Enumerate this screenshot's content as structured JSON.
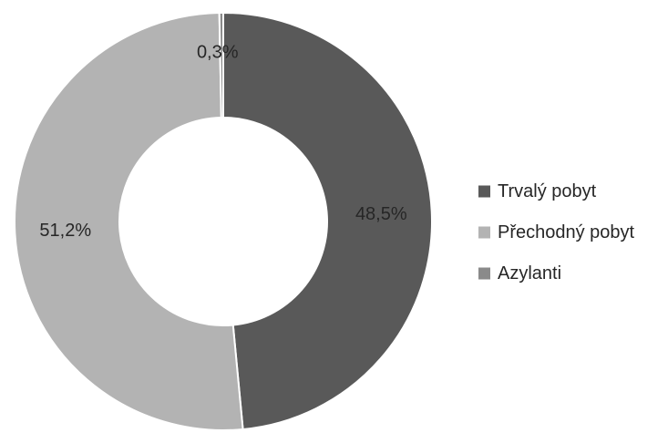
{
  "chart_data": {
    "type": "pie",
    "subtype": "doughnut",
    "title": "",
    "legend_position": "right",
    "slices": [
      {
        "label": "Trvalý pobyt",
        "value": 48.5,
        "display": "48,5%",
        "color": "#595959"
      },
      {
        "label": "Přechodný pobyt",
        "value": 51.2,
        "display": "51,2%",
        "color": "#b3b3b3"
      },
      {
        "label": "Azylanti",
        "value": 0.3,
        "display": "0,3%",
        "color": "#8a8a8a"
      }
    ]
  }
}
